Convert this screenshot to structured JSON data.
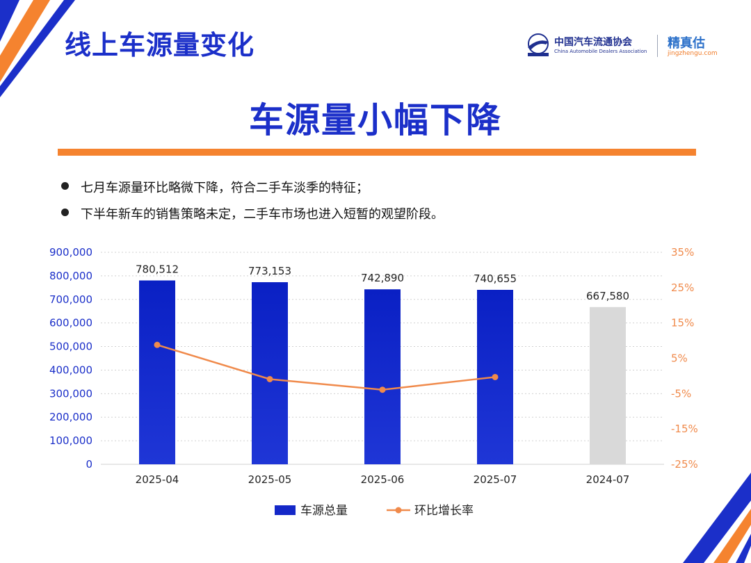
{
  "header": {
    "title": "线上车源量变化",
    "headline": "车源量小幅下降"
  },
  "logos": {
    "cada_name": "中国汽车流通协会",
    "cada_en": "China Automobile Dealers Association",
    "jzg_name": "精真估",
    "jzg_url": "jingzhengu.com"
  },
  "bullets": [
    "七月车源量环比略微下降，符合二手车淡季的特征；",
    "下半年新车的销售策略未定，二手车市场也进入短暂的观望阶段。"
  ],
  "colors": {
    "bar_current": "#1428c8",
    "bar_previous_year": "#d9d9d9",
    "line": "#f08a4b",
    "title_blue": "#1b2fc9",
    "accent_orange": "#f5832f"
  },
  "chart_data": {
    "type": "bar",
    "categories": [
      "2025-04",
      "2025-05",
      "2025-06",
      "2025-07",
      "2024-07"
    ],
    "series": [
      {
        "name": "车源总量",
        "type": "bar",
        "axis": "left",
        "values": [
          780512,
          773153,
          742890,
          740655,
          667580
        ],
        "labels": [
          "780,512",
          "773,153",
          "742,890",
          "740,655",
          "667,580"
        ]
      },
      {
        "name": "环比增长率",
        "type": "line",
        "axis": "right",
        "values": [
          8.8,
          -0.9,
          -3.9,
          -0.3,
          null
        ]
      }
    ],
    "y_left": {
      "lim": [
        0,
        900000
      ],
      "ticks": [
        "900,000",
        "800,000",
        "700,000",
        "600,000",
        "500,000",
        "400,000",
        "300,000",
        "200,000",
        "100,000",
        "0"
      ]
    },
    "y_right": {
      "lim": [
        -25,
        35
      ],
      "ticks": [
        "35%",
        "25%",
        "15%",
        "5%",
        "-5%",
        "-15%",
        "-25%"
      ]
    },
    "grid": "horizontal-dotted",
    "legend": "bottom-center"
  }
}
